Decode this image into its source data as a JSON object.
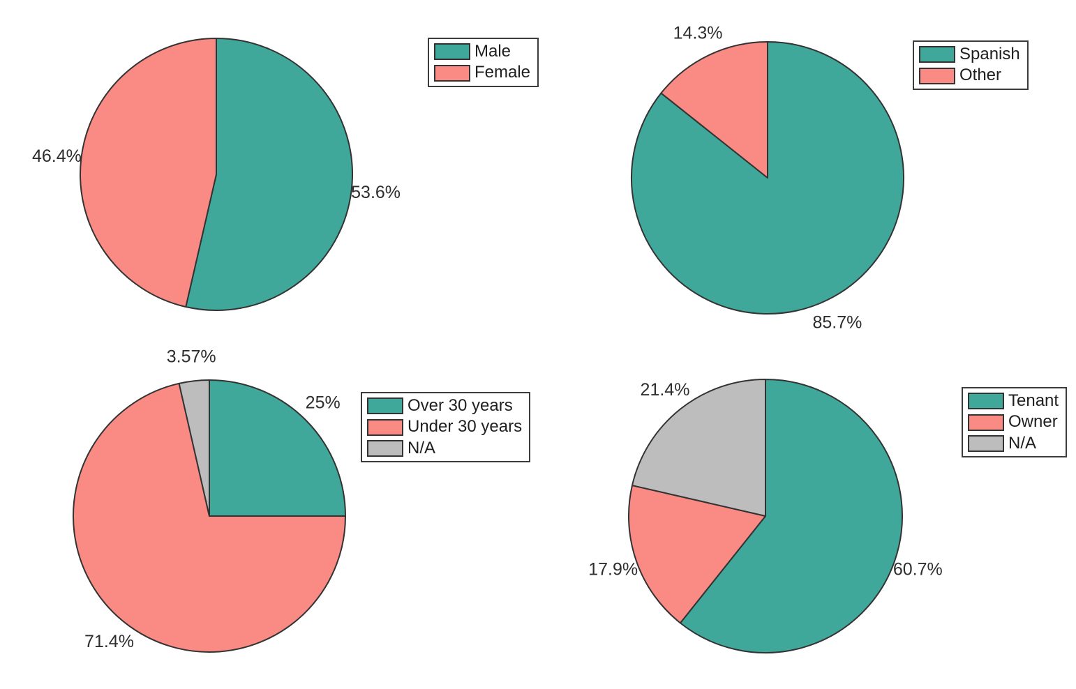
{
  "figure": {
    "background": "#ffffff",
    "text_color": "#2e2e2e",
    "edge_color": "#333333"
  },
  "palette": {
    "teal": "#3FA89A",
    "salmon": "#F98A84",
    "gray": "#BDBDBD"
  },
  "chart_data": [
    {
      "type": "pie",
      "id": "gender",
      "title": "",
      "direction": "clockwise",
      "start_angle": "12-oclock",
      "legend_position": "upper right",
      "slices": [
        {
          "label": "Male",
          "value": 53.6,
          "display": "53.6%",
          "color": "#3FA89A"
        },
        {
          "label": "Female",
          "value": 46.4,
          "display": "46.4%",
          "color": "#F98A84"
        }
      ]
    },
    {
      "type": "pie",
      "id": "language",
      "title": "",
      "direction": "clockwise",
      "start_angle": "12-oclock",
      "legend_position": "upper right",
      "slices": [
        {
          "label": "Spanish",
          "value": 85.7,
          "display": "85.7%",
          "color": "#3FA89A"
        },
        {
          "label": "Other",
          "value": 14.3,
          "display": "14.3%",
          "color": "#F98A84"
        }
      ]
    },
    {
      "type": "pie",
      "id": "age",
      "title": "",
      "direction": "clockwise",
      "start_angle": "12-oclock",
      "legend_position": "upper right",
      "slices": [
        {
          "label": "Over 30 years",
          "value": 25.0,
          "display": "25%",
          "color": "#3FA89A"
        },
        {
          "label": "Under 30 years",
          "value": 71.43,
          "display": "71.4%",
          "color": "#F98A84"
        },
        {
          "label": "N/A",
          "value": 3.57,
          "display": "3.57%",
          "color": "#BDBDBD"
        }
      ]
    },
    {
      "type": "pie",
      "id": "housing",
      "title": "",
      "direction": "clockwise",
      "start_angle": "12-oclock",
      "legend_position": "upper right",
      "slices": [
        {
          "label": "Tenant",
          "value": 60.7,
          "display": "60.7%",
          "color": "#3FA89A"
        },
        {
          "label": "Owner",
          "value": 17.9,
          "display": "17.9%",
          "color": "#F98A84"
        },
        {
          "label": "N/A",
          "value": 21.4,
          "display": "21.4%",
          "color": "#BDBDBD"
        }
      ]
    }
  ]
}
